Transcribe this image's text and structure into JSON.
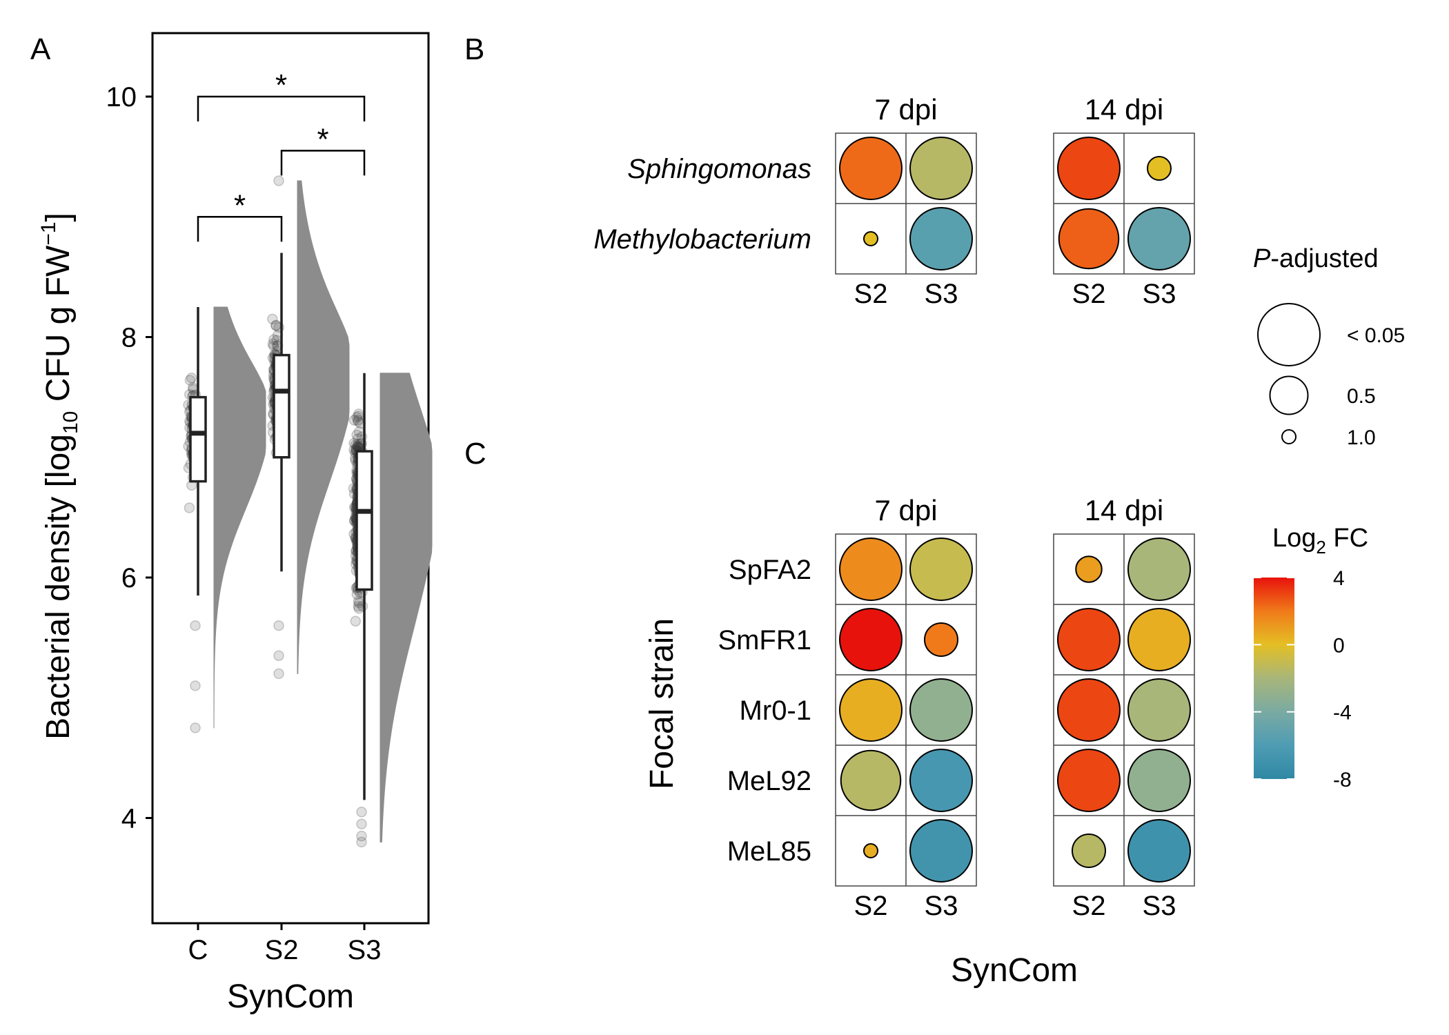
{
  "panels": {
    "a_letter": "A",
    "b_letter": "B",
    "c_letter": "C"
  },
  "chart_data": [
    {
      "panel": "A",
      "type": "box",
      "xlabel": "SynCom",
      "ylabel_parts": [
        "Bacterial density [log",
        "10",
        " CFU g FW",
        "−1",
        "]"
      ],
      "categories": [
        "C",
        "S2",
        "S3"
      ],
      "ylim": [
        3.2,
        10.5
      ],
      "yticks": [
        4,
        6,
        8,
        10
      ],
      "grid": false,
      "boxes": [
        {
          "category": "C",
          "min": 5.85,
          "q1": 6.8,
          "median": 7.2,
          "q3": 7.5,
          "max": 8.25,
          "point_range": [
            4.75,
            8.25
          ],
          "n_points": 70,
          "outliers": [
            5.6,
            5.1,
            4.75
          ]
        },
        {
          "category": "S2",
          "min": 6.05,
          "q1": 7.0,
          "median": 7.55,
          "q3": 7.85,
          "max": 8.7,
          "point_range": [
            5.2,
            9.3
          ],
          "n_points": 110,
          "outliers": [
            9.3,
            5.6,
            5.35,
            5.2
          ]
        },
        {
          "category": "S3",
          "min": 4.15,
          "q1": 5.9,
          "median": 6.55,
          "q3": 7.05,
          "max": 7.7,
          "point_range": [
            3.8,
            7.7
          ],
          "n_points": 320,
          "outliers": [
            4.05,
            3.95,
            3.85,
            3.8
          ]
        }
      ],
      "significance": [
        {
          "from": "C",
          "to": "S2",
          "y": 9.0,
          "label": "*"
        },
        {
          "from": "S2",
          "to": "S3",
          "y": 9.55,
          "label": "*"
        },
        {
          "from": "C",
          "to": "S3",
          "y": 10.0,
          "label": "*"
        }
      ],
      "box_fill": "#ffffff",
      "density_color": "#8c8c8c",
      "point_color": "#3a3a3a"
    },
    {
      "panel": "B",
      "type": "bubble-heatmap",
      "facets": [
        "7 dpi",
        "14 dpi"
      ],
      "columns": [
        "S2",
        "S3"
      ],
      "rows": [
        "Sphingomonas",
        "Methylobacterium"
      ],
      "rows_italic": true,
      "size_variable": "P-adjusted",
      "color_variable": "Log2 FC",
      "cells": [
        {
          "facet": "7 dpi",
          "row": "Sphingomonas",
          "col": "S2",
          "log2fc": 2.3,
          "padj": 0.0
        },
        {
          "facet": "7 dpi",
          "row": "Sphingomonas",
          "col": "S3",
          "log2fc": -1.5,
          "padj": 0.0
        },
        {
          "facet": "7 dpi",
          "row": "Methylobacterium",
          "col": "S2",
          "log2fc": 0.0,
          "padj": 1.0
        },
        {
          "facet": "7 dpi",
          "row": "Methylobacterium",
          "col": "S3",
          "log2fc": -5.5,
          "padj": 0.0
        },
        {
          "facet": "14 dpi",
          "row": "Sphingomonas",
          "col": "S2",
          "log2fc": 3.0,
          "padj": 0.0
        },
        {
          "facet": "14 dpi",
          "row": "Sphingomonas",
          "col": "S3",
          "log2fc": 0.0,
          "padj": 0.8
        },
        {
          "facet": "14 dpi",
          "row": "Methylobacterium",
          "col": "S2",
          "log2fc": 2.5,
          "padj": 0.05
        },
        {
          "facet": "14 dpi",
          "row": "Methylobacterium",
          "col": "S3",
          "log2fc": -5.0,
          "padj": 0.0
        }
      ]
    },
    {
      "panel": "C",
      "type": "bubble-heatmap",
      "xlabel": "SynCom",
      "ylabel": "Focal strain",
      "facets": [
        "7 dpi",
        "14 dpi"
      ],
      "columns": [
        "S2",
        "S3"
      ],
      "rows": [
        "SpFA2",
        "SmFR1",
        "Mr0-1",
        "MeL92",
        "MeL85"
      ],
      "cells": [
        {
          "facet": "7 dpi",
          "row": "SpFA2",
          "col": "S2",
          "log2fc": 1.5,
          "padj": 0.0
        },
        {
          "facet": "7 dpi",
          "row": "SpFA2",
          "col": "S3",
          "log2fc": -1.0,
          "padj": 0.0
        },
        {
          "facet": "7 dpi",
          "row": "SmFR1",
          "col": "S2",
          "log2fc": 4.0,
          "padj": 0.0
        },
        {
          "facet": "7 dpi",
          "row": "SmFR1",
          "col": "S3",
          "log2fc": 2.0,
          "padj": 0.6
        },
        {
          "facet": "7 dpi",
          "row": "Mr0-1",
          "col": "S2",
          "log2fc": 0.5,
          "padj": 0.0
        },
        {
          "facet": "7 dpi",
          "row": "Mr0-1",
          "col": "S3",
          "log2fc": -3.0,
          "padj": 0.0
        },
        {
          "facet": "7 dpi",
          "row": "MeL92",
          "col": "S2",
          "log2fc": -1.5,
          "padj": 0.05
        },
        {
          "facet": "7 dpi",
          "row": "MeL92",
          "col": "S3",
          "log2fc": -6.5,
          "padj": 0.0
        },
        {
          "facet": "7 dpi",
          "row": "MeL85",
          "col": "S2",
          "log2fc": 0.5,
          "padj": 1.0
        },
        {
          "facet": "7 dpi",
          "row": "MeL85",
          "col": "S3",
          "log2fc": -6.8,
          "padj": 0.0
        },
        {
          "facet": "14 dpi",
          "row": "SpFA2",
          "col": "S2",
          "log2fc": 1.0,
          "padj": 0.75
        },
        {
          "facet": "14 dpi",
          "row": "SpFA2",
          "col": "S3",
          "log2fc": -2.0,
          "padj": 0.0
        },
        {
          "facet": "14 dpi",
          "row": "SmFR1",
          "col": "S2",
          "log2fc": 3.0,
          "padj": 0.0
        },
        {
          "facet": "14 dpi",
          "row": "SmFR1",
          "col": "S3",
          "log2fc": 0.5,
          "padj": 0.0
        },
        {
          "facet": "14 dpi",
          "row": "Mr0-1",
          "col": "S2",
          "log2fc": 3.0,
          "padj": 0.0
        },
        {
          "facet": "14 dpi",
          "row": "Mr0-1",
          "col": "S3",
          "log2fc": -2.0,
          "padj": 0.0
        },
        {
          "facet": "14 dpi",
          "row": "MeL92",
          "col": "S2",
          "log2fc": 3.0,
          "padj": 0.0
        },
        {
          "facet": "14 dpi",
          "row": "MeL92",
          "col": "S3",
          "log2fc": -3.0,
          "padj": 0.0
        },
        {
          "facet": "14 dpi",
          "row": "MeL85",
          "col": "S2",
          "log2fc": -1.5,
          "padj": 0.6
        },
        {
          "facet": "14 dpi",
          "row": "MeL85",
          "col": "S3",
          "log2fc": -7.0,
          "padj": 0.0
        }
      ]
    }
  ],
  "legends": {
    "size": {
      "title_italic": "P",
      "title_rest": "-adjusted",
      "entries": [
        {
          "label": "< 0.05",
          "padj": 0.0
        },
        {
          "label": "0.5",
          "padj": 0.5
        },
        {
          "label": "1.0",
          "padj": 1.0
        }
      ]
    },
    "color": {
      "title_parts": [
        "Log",
        "2",
        " FC"
      ],
      "range": [
        -8,
        4
      ],
      "ticks": [
        4,
        0,
        -4,
        -8
      ],
      "tick_labels": [
        "4",
        "0",
        "-4",
        "-8"
      ],
      "gradient_stops": [
        {
          "value": 4,
          "color": "#e8120c"
        },
        {
          "value": 2,
          "color": "#f07a1a"
        },
        {
          "value": 0,
          "color": "#e4bf24"
        },
        {
          "value": -2,
          "color": "#a8b67a"
        },
        {
          "value": -4,
          "color": "#7aaaa3"
        },
        {
          "value": -6,
          "color": "#4e9cb3"
        },
        {
          "value": -8,
          "color": "#2f88a4"
        }
      ]
    }
  }
}
